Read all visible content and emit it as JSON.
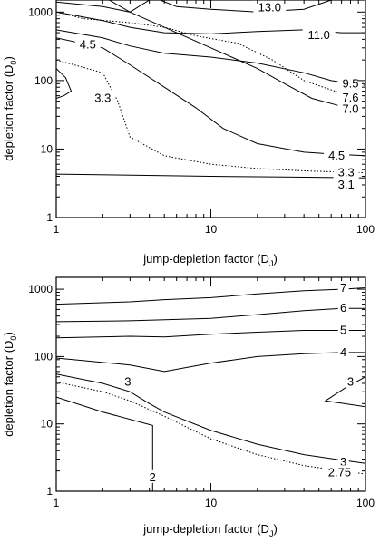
{
  "chart_data": [
    {
      "type": "contour",
      "xlabel": "jump-depletion factor (D_J)",
      "xlabel_main": "jump-depletion factor (D",
      "xlabel_sub": "J",
      "xlabel_close": ")",
      "ylabel": "depletion factor (D_0)",
      "ylabel_main": "depletion factor (D",
      "ylabel_sub": "0",
      "ylabel_close": ")",
      "x_scale": "log",
      "y_scale": "log",
      "xlim": [
        1,
        100
      ],
      "ylim": [
        1,
        1500
      ],
      "xticks": [
        1,
        10,
        100
      ],
      "xtick_labels": [
        "1",
        "10",
        "100"
      ],
      "yticks": [
        1,
        10,
        100,
        1000
      ],
      "ytick_labels": [
        "1",
        "10",
        "100",
        "1000"
      ],
      "contours": [
        {
          "label": "13.0",
          "style": "solid",
          "points": [
            [
              1,
              1400
            ],
            [
              2,
              1200
            ],
            [
              3,
              1000
            ],
            [
              4,
              1500
            ]
          ]
        },
        {
          "label": "13.0",
          "style": "solid",
          "points": [
            [
              4.7,
              1500
            ],
            [
              6,
              1200
            ],
            [
              10,
              1100
            ],
            [
              20,
              1000
            ],
            [
              40,
              1100
            ],
            [
              60,
              1500
            ]
          ]
        },
        {
          "label": "11.0",
          "style": "solid",
          "points": [
            [
              1,
              1000
            ],
            [
              2,
              750
            ],
            [
              3,
              600
            ],
            [
              5,
              500
            ],
            [
              10,
              480
            ],
            [
              20,
              520
            ],
            [
              40,
              550
            ],
            [
              70,
              500
            ],
            [
              100,
              500
            ]
          ]
        },
        {
          "label": "9.5",
          "style": "solid",
          "points": [
            [
              1,
              550
            ],
            [
              2,
              420
            ],
            [
              3,
              320
            ],
            [
              5,
              250
            ],
            [
              10,
              220
            ],
            [
              20,
              180
            ],
            [
              40,
              130
            ],
            [
              60,
              100
            ],
            [
              100,
              85
            ]
          ]
        },
        {
          "label": "7.6",
          "style": "dotted",
          "points": [
            [
              1,
              1000
            ],
            [
              1.5,
              800
            ],
            [
              3,
              700
            ],
            [
              5,
              600
            ],
            [
              8,
              450
            ],
            [
              15,
              350
            ],
            [
              25,
              200
            ],
            [
              40,
              100
            ],
            [
              70,
              65
            ],
            [
              100,
              55
            ]
          ]
        },
        {
          "label": "7.0",
          "style": "solid",
          "points": [
            [
              2.2,
              1500
            ],
            [
              3,
              1000
            ],
            [
              5,
              600
            ],
            [
              10,
              300
            ],
            [
              20,
              150
            ],
            [
              30,
              90
            ],
            [
              45,
              55
            ],
            [
              70,
              42
            ],
            [
              100,
              40
            ]
          ]
        },
        {
          "label": "4.5",
          "style": "solid",
          "points": [
            [
              1,
              420
            ],
            [
              2,
              300
            ],
            [
              3,
              170
            ],
            [
              5,
              80
            ],
            [
              8,
              40
            ],
            [
              12,
              20
            ],
            [
              20,
              12
            ],
            [
              40,
              9
            ],
            [
              70,
              8.3
            ],
            [
              100,
              8
            ]
          ]
        },
        {
          "label": "3.3",
          "style": "dotted",
          "points": [
            [
              1,
              200
            ],
            [
              2,
              130
            ],
            [
              2.5,
              50
            ],
            [
              3,
              15
            ],
            [
              5,
              8
            ],
            [
              10,
              6
            ],
            [
              20,
              5.2
            ],
            [
              40,
              4.8
            ],
            [
              100,
              4.5
            ]
          ]
        },
        {
          "label": "3.1",
          "style": "solid",
          "points": [
            [
              1,
              4.3
            ],
            [
              10,
              4.0
            ],
            [
              30,
              3.9
            ],
            [
              100,
              3.8
            ]
          ]
        },
        {
          "label": "",
          "style": "solid",
          "points": [
            [
              1,
              150
            ],
            [
              1.15,
              110
            ],
            [
              1.25,
              70
            ],
            [
              1.12,
              60
            ],
            [
              1,
              55
            ]
          ]
        }
      ],
      "contour_labels": [
        {
          "text": "13.0",
          "x": 24,
          "y": 1150
        },
        {
          "text": "11.0",
          "x": 50,
          "y": 460
        },
        {
          "text": "9.5",
          "x": 80,
          "y": 90
        },
        {
          "text": "7.6",
          "x": 80,
          "y": 56
        },
        {
          "text": "7.0",
          "x": 80,
          "y": 38
        },
        {
          "text": "4.5",
          "x": 1.6,
          "y": 330
        },
        {
          "text": "3.3",
          "x": 2.0,
          "y": 55
        },
        {
          "text": "4.5",
          "x": 65,
          "y": 8
        },
        {
          "text": "3.3",
          "x": 75,
          "y": 4.5
        },
        {
          "text": "3.1",
          "x": 75,
          "y": 3.0
        }
      ]
    },
    {
      "type": "contour",
      "xlabel": "jump-depletion factor (D_J)",
      "xlabel_main": "jump-depletion factor (D",
      "xlabel_sub": "J",
      "xlabel_close": ")",
      "ylabel": "depletion factor (D_0)",
      "ylabel_main": "depletion factor (D",
      "ylabel_sub": "0",
      "ylabel_close": ")",
      "x_scale": "log",
      "y_scale": "log",
      "xlim": [
        1,
        100
      ],
      "ylim": [
        1,
        1500
      ],
      "xticks": [
        1,
        10,
        100
      ],
      "xtick_labels": [
        "1",
        "10",
        "100"
      ],
      "yticks": [
        1,
        10,
        100,
        1000
      ],
      "ytick_labels": [
        "1",
        "10",
        "100",
        "1000"
      ],
      "contours": [
        {
          "label": "7",
          "style": "solid",
          "points": [
            [
              1,
              600
            ],
            [
              3,
              650
            ],
            [
              5,
              700
            ],
            [
              10,
              750
            ],
            [
              20,
              850
            ],
            [
              40,
              950
            ],
            [
              70,
              1000
            ],
            [
              100,
              1050
            ]
          ]
        },
        {
          "label": "6",
          "style": "solid",
          "points": [
            [
              1,
              330
            ],
            [
              3,
              340
            ],
            [
              10,
              370
            ],
            [
              20,
              420
            ],
            [
              40,
              480
            ],
            [
              70,
              520
            ],
            [
              100,
              520
            ]
          ]
        },
        {
          "label": "5",
          "style": "solid",
          "points": [
            [
              1,
              190
            ],
            [
              3,
              200
            ],
            [
              5,
              195
            ],
            [
              10,
              215
            ],
            [
              20,
              230
            ],
            [
              40,
              245
            ],
            [
              70,
              245
            ],
            [
              100,
              245
            ]
          ]
        },
        {
          "label": "4",
          "style": "solid",
          "points": [
            [
              1,
              95
            ],
            [
              3,
              75
            ],
            [
              5,
              60
            ],
            [
              10,
              80
            ],
            [
              20,
              100
            ],
            [
              40,
              110
            ],
            [
              70,
              115
            ],
            [
              100,
              115
            ]
          ]
        },
        {
          "label": "3",
          "style": "solid",
          "points": [
            [
              1,
              55
            ],
            [
              2,
              40
            ],
            [
              3,
              30
            ],
            [
              4,
              20
            ],
            [
              5,
              15
            ],
            [
              10,
              8
            ],
            [
              20,
              5
            ],
            [
              40,
              3.5
            ],
            [
              70,
              2.9
            ],
            [
              100,
              2.6
            ]
          ]
        },
        {
          "label": "2.75",
          "style": "dotted",
          "points": [
            [
              1,
              42
            ],
            [
              2,
              30
            ],
            [
              3,
              22
            ],
            [
              5,
              13
            ],
            [
              10,
              6
            ],
            [
              20,
              3.5
            ],
            [
              40,
              2.4
            ],
            [
              70,
              2.0
            ],
            [
              100,
              1.8
            ]
          ]
        },
        {
          "label": "2",
          "style": "solid",
          "points": [
            [
              1,
              25
            ],
            [
              2,
              15
            ],
            [
              4.2,
              9.5
            ],
            [
              4.2,
              1
            ]
          ]
        },
        {
          "label": "3",
          "style": "solid",
          "points": [
            [
              100,
              50
            ],
            [
              75,
              35
            ],
            [
              55,
              22
            ],
            [
              100,
              18
            ]
          ]
        }
      ],
      "contour_labels": [
        {
          "text": "7",
          "x": 72,
          "y": 1030
        },
        {
          "text": "6",
          "x": 72,
          "y": 520
        },
        {
          "text": "5",
          "x": 72,
          "y": 245
        },
        {
          "text": "4",
          "x": 72,
          "y": 115
        },
        {
          "text": "3",
          "x": 2.9,
          "y": 42
        },
        {
          "text": "3",
          "x": 80,
          "y": 42
        },
        {
          "text": "2",
          "x": 4.2,
          "y": 1.6
        },
        {
          "text": "3",
          "x": 72,
          "y": 2.7
        },
        {
          "text": "2.75",
          "x": 68,
          "y": 1.9
        }
      ]
    }
  ]
}
